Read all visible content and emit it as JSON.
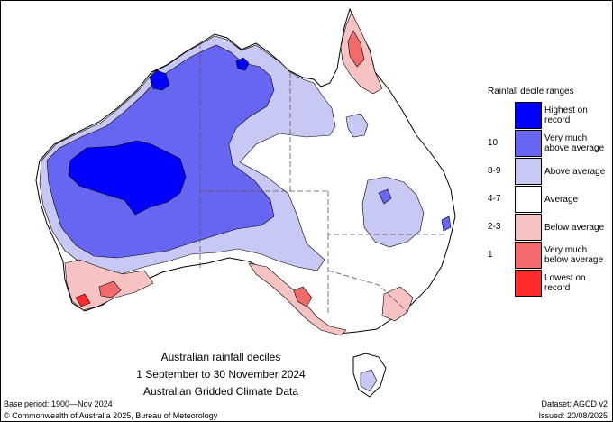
{
  "title": {
    "line1": "Australian rainfall deciles",
    "line2": "1 September to 30 November 2024",
    "line3": "Australian Gridded Climate Data"
  },
  "legend": {
    "title": "Rainfall decile ranges",
    "items": [
      {
        "range": "",
        "label": "Highest on\nrecord",
        "color": "#0000ff"
      },
      {
        "range": "10",
        "label": "Very much\nabove average",
        "color": "#6666f2"
      },
      {
        "range": "8-9",
        "label": "Above average",
        "color": "#c8c8f4"
      },
      {
        "range": "4-7",
        "label": "Average",
        "color": "#ffffff"
      },
      {
        "range": "2-3",
        "label": "Below average",
        "color": "#f7c2c2"
      },
      {
        "range": "1",
        "label": "Very much\nbelow average",
        "color": "#f26b6b"
      },
      {
        "range": "",
        "label": "Lowest on\nrecord",
        "color": "#ff2a2a"
      }
    ]
  },
  "footer": {
    "base_period": "Base period: 1900—Nov 2024",
    "dataset": "Dataset: AGCD v2",
    "copyright": "© Commonwealth of Australia 2025, Bureau of Meteorology",
    "issued": "Issued: 20/08/2025"
  },
  "colors": {
    "coast": "#000000",
    "state_border": "#555555"
  }
}
